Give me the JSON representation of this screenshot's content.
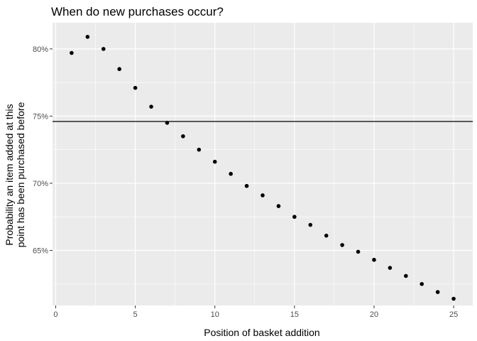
{
  "chart_data": {
    "type": "scatter",
    "title": "When do new purchases occur?",
    "xlabel": "Position of basket addition",
    "ylabel_lines": [
      "Probability an item added at this",
      "point has been purchased before"
    ],
    "xlim": [
      -0.2,
      26.2
    ],
    "ylim": [
      0.609,
      0.8195
    ],
    "x_ticks": [
      0,
      5,
      10,
      15,
      20,
      25
    ],
    "x_tick_labels": [
      "0",
      "5",
      "10",
      "15",
      "20",
      "25"
    ],
    "y_ticks": [
      0.65,
      0.7,
      0.75,
      0.8
    ],
    "y_tick_labels": [
      "65%",
      "70%",
      "75%",
      "80%"
    ],
    "grid": true,
    "hline": 0.746,
    "points": {
      "x": [
        1,
        2,
        3,
        4,
        5,
        6,
        7,
        8,
        9,
        10,
        11,
        12,
        13,
        14,
        15,
        16,
        17,
        18,
        19,
        20,
        21,
        22,
        23,
        24,
        25
      ],
      "y": [
        0.797,
        0.809,
        0.8,
        0.785,
        0.771,
        0.757,
        0.745,
        0.735,
        0.725,
        0.716,
        0.707,
        0.698,
        0.691,
        0.683,
        0.675,
        0.669,
        0.661,
        0.654,
        0.649,
        0.643,
        0.637,
        0.631,
        0.625,
        0.619,
        0.614
      ]
    },
    "colors": {
      "panel": "#ebebeb",
      "grid_major": "#ffffff",
      "point": "#000000",
      "hline": "#000000"
    }
  }
}
